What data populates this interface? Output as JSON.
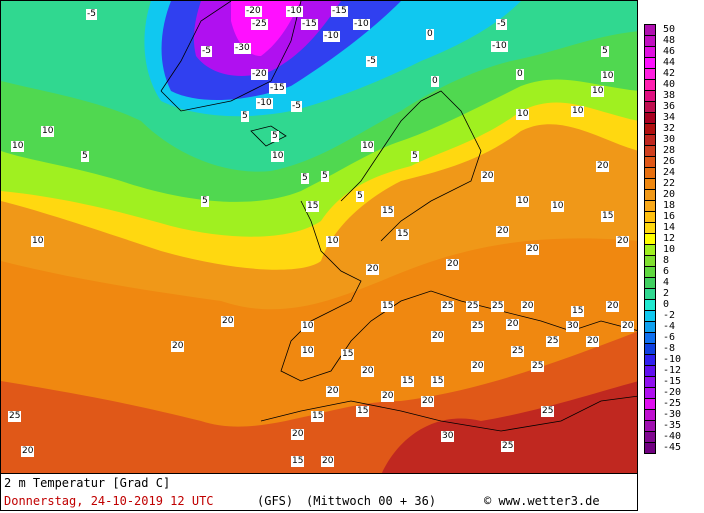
{
  "map": {
    "contour_labels": [
      "-20",
      "-25",
      "-10",
      "-15",
      "-15",
      "-10",
      "-5",
      "-30",
      "-5",
      "-20",
      "-15",
      "-10",
      "-5",
      "-10",
      "0",
      "-5",
      "-10",
      "-5",
      "0",
      "5",
      "5",
      "5",
      "10",
      "5",
      "10",
      "5",
      "5",
      "10",
      "0",
      "10",
      "10",
      "10",
      "5",
      "15",
      "10",
      "15",
      "20",
      "10",
      "10",
      "15",
      "20",
      "20",
      "20",
      "15",
      "10",
      "20",
      "20",
      "20",
      "25",
      "25",
      "25",
      "20",
      "20",
      "25",
      "30",
      "20",
      "15",
      "20",
      "25",
      "20",
      "20",
      "15",
      "25",
      "30",
      "25",
      "25",
      "10",
      "15",
      "20",
      "20",
      "15",
      "20",
      "25",
      "20",
      "20",
      "20",
      "15",
      "20",
      "10",
      "15",
      "20",
      "5",
      "10",
      "15",
      "20",
      "25",
      "15",
      "20",
      "10",
      "5"
    ]
  },
  "legend": {
    "labels": [
      "50",
      "48",
      "46",
      "44",
      "42",
      "40",
      "38",
      "36",
      "34",
      "32",
      "30",
      "28",
      "26",
      "24",
      "22",
      "20",
      "18",
      "16",
      "14",
      "12",
      "10",
      "8",
      "6",
      "4",
      "2",
      "0",
      "-2",
      "-4",
      "-6",
      "-8",
      "-10",
      "-12",
      "-15",
      "-20",
      "-25",
      "-30",
      "-35",
      "-40",
      "-45"
    ],
    "colors": [
      "#b010b0",
      "#c010c0",
      "#e010e0",
      "#ff10ff",
      "#ff20e0",
      "#ff20b0",
      "#e01080",
      "#c01050",
      "#a80020",
      "#b01010",
      "#c02820",
      "#d04020",
      "#e05818",
      "#e87010",
      "#f08810",
      "#f09818",
      "#f8a818",
      "#ffc010",
      "#ffd810",
      "#ffff00",
      "#a0f020",
      "#80e030",
      "#60d840",
      "#40d060",
      "#30d890",
      "#20e8d0",
      "#10c8f0",
      "#10a0f0",
      "#1070f0",
      "#1040e0",
      "#3020f0",
      "#6010f0",
      "#9010f0",
      "#b010f0",
      "#e010f0",
      "#c010d0",
      "#a010b0",
      "#800890",
      "#700080"
    ]
  },
  "footer": {
    "variable": "2 m Temperatur [Grad C]",
    "valid_time": "Donnerstag, 24-10-2019  12 UTC",
    "model": "(GFS)",
    "run": "(Mittwoch 00 + 36)",
    "copyright": "© www.wetter3.de"
  }
}
